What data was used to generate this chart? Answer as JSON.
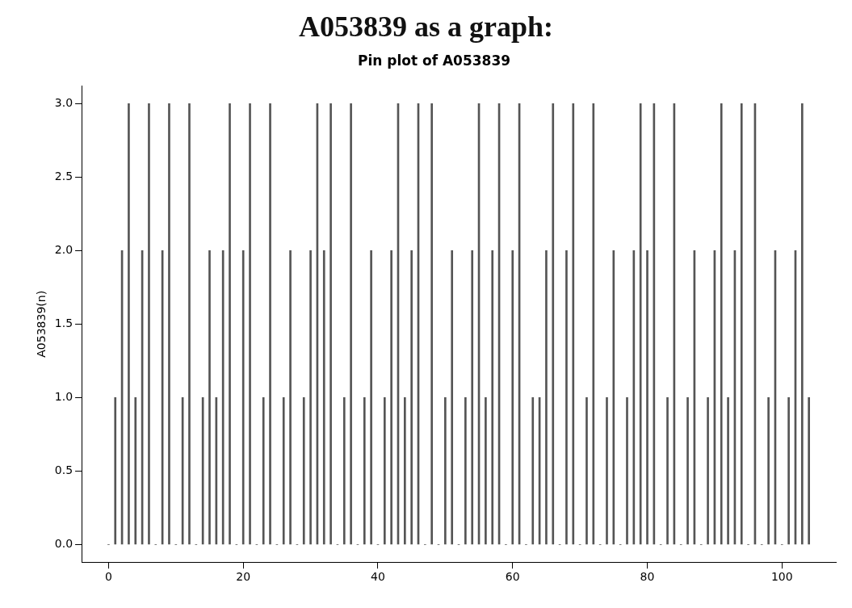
{
  "chart_data": {
    "type": "bar",
    "title": "A053839 as a graph:",
    "subtitle": "Pin plot of A053839",
    "ylabel": "A053839(n)",
    "x": [
      0,
      1,
      2,
      3,
      4,
      5,
      6,
      7,
      8,
      9,
      10,
      11,
      12,
      13,
      14,
      15,
      16,
      17,
      18,
      19,
      20,
      21,
      22,
      23,
      24,
      25,
      26,
      27,
      28,
      29,
      30,
      31,
      32,
      33,
      34,
      35,
      36,
      37,
      38,
      39,
      40,
      41,
      42,
      43,
      44,
      45,
      46,
      47,
      48,
      49,
      50,
      51,
      52,
      53,
      54,
      55,
      56,
      57,
      58,
      59,
      60,
      61,
      62,
      63,
      64,
      65,
      66,
      67,
      68,
      69,
      70,
      71,
      72,
      73,
      74,
      75,
      76,
      77,
      78,
      79,
      80,
      81,
      82,
      83,
      84,
      85,
      86,
      87,
      88,
      89,
      90,
      91,
      92,
      93,
      94,
      95,
      96,
      97,
      98,
      99,
      100,
      101,
      102,
      103,
      104
    ],
    "values": [
      0,
      1,
      2,
      3,
      1,
      2,
      3,
      0,
      2,
      3,
      0,
      1,
      3,
      0,
      1,
      2,
      1,
      2,
      3,
      0,
      2,
      3,
      0,
      1,
      3,
      0,
      1,
      2,
      0,
      1,
      2,
      3,
      2,
      3,
      0,
      1,
      3,
      0,
      1,
      2,
      0,
      1,
      2,
      3,
      1,
      2,
      3,
      0,
      3,
      0,
      1,
      2,
      0,
      1,
      2,
      3,
      1,
      2,
      3,
      0,
      2,
      3,
      0,
      1,
      1,
      2,
      3,
      0,
      2,
      3,
      0,
      1,
      3,
      0,
      1,
      2,
      0,
      1,
      2,
      3,
      2,
      3,
      0,
      1,
      3,
      0,
      1,
      2,
      0,
      1,
      2,
      3,
      1,
      2,
      3,
      0,
      3,
      0,
      1,
      2,
      0,
      1,
      2,
      3,
      1
    ],
    "color": "#555555",
    "xlim": [
      -4,
      108
    ],
    "xticks": [
      0,
      20,
      40,
      60,
      80,
      100
    ],
    "ylim": [
      -0.12,
      3.12
    ],
    "yticks": [
      {
        "value": 0,
        "label": "0.0"
      },
      {
        "value": 0.5,
        "label": "0.5"
      },
      {
        "value": 1,
        "label": "1.0"
      },
      {
        "value": 1.5,
        "label": "1.5"
      },
      {
        "value": 2,
        "label": "2.0"
      },
      {
        "value": 2.5,
        "label": "2.5"
      },
      {
        "value": 3,
        "label": "3.0"
      }
    ]
  }
}
